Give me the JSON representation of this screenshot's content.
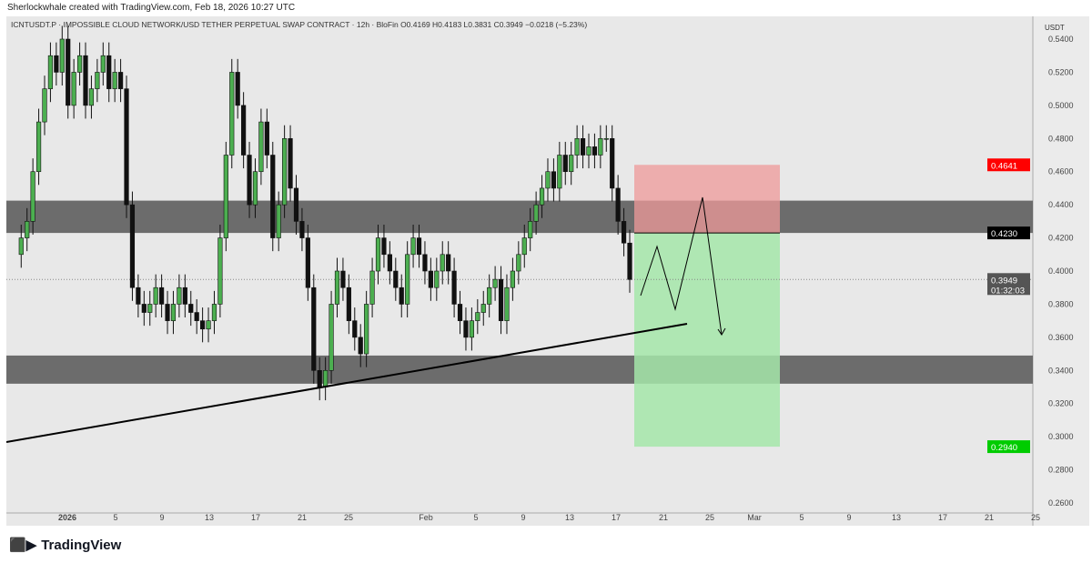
{
  "credit": "Sherlockwhale created with TradingView.com, Feb 18, 2026 10:27 UTC",
  "legend": "ICNTUSDT.P · IMPOSSIBLE CLOUD NETWORK/USD TETHER PERPETUAL SWAP CONTRACT · 12h · BloFin  O0.4169  H0.4183  L0.3831  C0.3949  −0.0218 (−5.23%)",
  "logo": "TradingView",
  "chart_data": {
    "type": "candlestick",
    "currency": "USDT",
    "ylim": [
      0.25,
      0.545
    ],
    "y_ticks": [
      "0.5400",
      "0.5200",
      "0.5000",
      "0.4800",
      "0.4600",
      "0.4400",
      "0.4200",
      "0.4000",
      "0.3800",
      "0.3600",
      "0.3400",
      "0.3200",
      "0.3000",
      "0.2800",
      "0.2600"
    ],
    "x_ticks": [
      "2026",
      "5",
      "9",
      "13",
      "17",
      "21",
      "25",
      "Feb",
      "5",
      "9",
      "13",
      "17",
      "21",
      "25",
      "Mar",
      "5",
      "9",
      "13",
      "17",
      "21",
      "25"
    ],
    "closes": [
      0.42,
      0.43,
      0.46,
      0.49,
      0.51,
      0.53,
      0.52,
      0.54,
      0.5,
      0.52,
      0.53,
      0.5,
      0.51,
      0.52,
      0.53,
      0.51,
      0.52,
      0.51,
      0.44,
      0.39,
      0.38,
      0.375,
      0.38,
      0.39,
      0.38,
      0.37,
      0.38,
      0.39,
      0.38,
      0.375,
      0.37,
      0.365,
      0.37,
      0.38,
      0.42,
      0.47,
      0.52,
      0.5,
      0.47,
      0.44,
      0.46,
      0.49,
      0.47,
      0.42,
      0.44,
      0.48,
      0.45,
      0.43,
      0.42,
      0.39,
      0.34,
      0.33,
      0.34,
      0.38,
      0.4,
      0.39,
      0.37,
      0.36,
      0.35,
      0.38,
      0.4,
      0.42,
      0.41,
      0.4,
      0.39,
      0.38,
      0.41,
      0.42,
      0.41,
      0.4,
      0.39,
      0.4,
      0.41,
      0.4,
      0.38,
      0.37,
      0.36,
      0.37,
      0.375,
      0.38,
      0.39,
      0.395,
      0.37,
      0.39,
      0.4,
      0.41,
      0.42,
      0.43,
      0.44,
      0.45,
      0.46,
      0.45,
      0.47,
      0.46,
      0.47,
      0.48,
      0.47,
      0.475,
      0.47,
      0.48,
      0.48,
      0.45,
      0.43,
      0.4169,
      0.3949
    ],
    "last_price": "0.3949",
    "countdown": "01:32:03",
    "stop_label": "0.4641",
    "entry_label": "0.4230",
    "target_label": "0.2940",
    "zones": [
      [
        0.423,
        0.4425
      ],
      [
        0.332,
        0.349
      ]
    ],
    "colors": {
      "up": "#4caf50",
      "down": "#111111",
      "zone": "#5e5e5e",
      "stop": "#ef9a9a",
      "target": "#a5e6a9"
    }
  }
}
